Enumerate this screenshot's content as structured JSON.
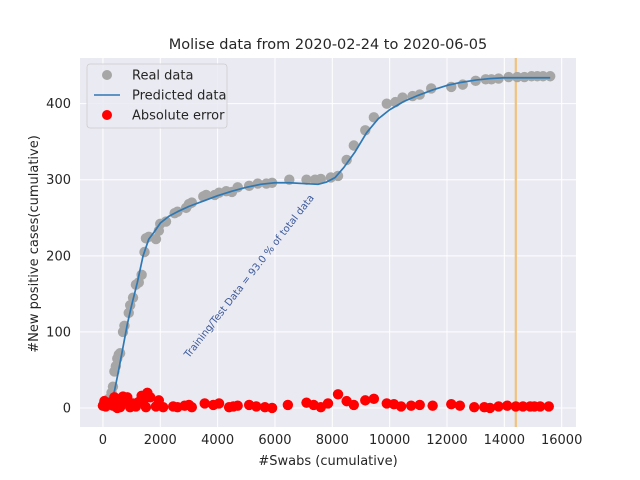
{
  "chart_data": {
    "type": "scatter",
    "title": "Molise data  from 2020-02-24 to 2020-06-05",
    "xlabel": "#Swabs (cumulative)",
    "ylabel": "#New positive cases(cumulative)",
    "xlim": [
      -800,
      16500
    ],
    "ylim": [
      -25,
      460
    ],
    "x_ticks": [
      0,
      2000,
      4000,
      6000,
      8000,
      10000,
      12000,
      14000,
      16000
    ],
    "y_ticks": [
      0,
      100,
      200,
      300,
      400
    ],
    "grid": true,
    "legend_position": "top-left",
    "annotation": {
      "text": "Training/Test Data = 93.0 % of total data",
      "x": 3000,
      "y": 65
    },
    "split_line_x": 14400,
    "colors": {
      "real": "#a6a6a6",
      "predicted": "#2e78b4",
      "error": "#ff0000",
      "split": "#f0c27b",
      "background": "#eaeaf2"
    },
    "series": [
      {
        "name": "Real data",
        "kind": "scatter",
        "points": [
          [
            0,
            3
          ],
          [
            50,
            5
          ],
          [
            100,
            8
          ],
          [
            200,
            12
          ],
          [
            300,
            20
          ],
          [
            350,
            28
          ],
          [
            400,
            48
          ],
          [
            450,
            55
          ],
          [
            500,
            65
          ],
          [
            550,
            70
          ],
          [
            600,
            72
          ],
          [
            700,
            100
          ],
          [
            750,
            108
          ],
          [
            900,
            125
          ],
          [
            950,
            135
          ],
          [
            1050,
            145
          ],
          [
            1150,
            162
          ],
          [
            1250,
            165
          ],
          [
            1350,
            175
          ],
          [
            1450,
            205
          ],
          [
            1500,
            223
          ],
          [
            1600,
            225
          ],
          [
            1850,
            222
          ],
          [
            1950,
            233
          ],
          [
            2000,
            242
          ],
          [
            2200,
            245
          ],
          [
            2500,
            256
          ],
          [
            2600,
            258
          ],
          [
            2900,
            263
          ],
          [
            3000,
            268
          ],
          [
            3100,
            270
          ],
          [
            3500,
            278
          ],
          [
            3600,
            280
          ],
          [
            3900,
            280
          ],
          [
            4050,
            283
          ],
          [
            4300,
            285
          ],
          [
            4500,
            284
          ],
          [
            4700,
            290
          ],
          [
            5100,
            292
          ],
          [
            5400,
            295
          ],
          [
            5700,
            295
          ],
          [
            5900,
            296
          ],
          [
            6500,
            300
          ],
          [
            7100,
            300
          ],
          [
            7400,
            300
          ],
          [
            7600,
            301
          ],
          [
            7950,
            303
          ],
          [
            8200,
            305
          ],
          [
            8500,
            326
          ],
          [
            8750,
            345
          ],
          [
            9150,
            365
          ],
          [
            9450,
            382
          ],
          [
            9900,
            400
          ],
          [
            10200,
            402
          ],
          [
            10450,
            408
          ],
          [
            10800,
            410
          ],
          [
            11050,
            412
          ],
          [
            11450,
            420
          ],
          [
            12150,
            422
          ],
          [
            12550,
            425
          ],
          [
            13000,
            430
          ],
          [
            13350,
            432
          ],
          [
            13550,
            432
          ],
          [
            13800,
            433
          ],
          [
            14150,
            435
          ],
          [
            14450,
            435
          ],
          [
            14700,
            435
          ],
          [
            14950,
            436
          ],
          [
            15150,
            436
          ],
          [
            15350,
            436
          ],
          [
            15600,
            436
          ]
        ]
      },
      {
        "name": "Predicted data",
        "kind": "line",
        "points": [
          [
            0,
            0
          ],
          [
            200,
            5
          ],
          [
            400,
            22
          ],
          [
            550,
            50
          ],
          [
            700,
            80
          ],
          [
            850,
            110
          ],
          [
            1000,
            135
          ],
          [
            1200,
            165
          ],
          [
            1400,
            200
          ],
          [
            1600,
            222
          ],
          [
            1800,
            232
          ],
          [
            2000,
            243
          ],
          [
            2300,
            252
          ],
          [
            2600,
            258
          ],
          [
            3000,
            265
          ],
          [
            3500,
            272
          ],
          [
            4000,
            279
          ],
          [
            4500,
            285
          ],
          [
            5000,
            290
          ],
          [
            5500,
            294
          ],
          [
            6000,
            296
          ],
          [
            6500,
            296
          ],
          [
            7000,
            295
          ],
          [
            7500,
            294
          ],
          [
            7800,
            297
          ],
          [
            8100,
            303
          ],
          [
            8400,
            316
          ],
          [
            8800,
            337
          ],
          [
            9200,
            362
          ],
          [
            9600,
            380
          ],
          [
            10000,
            392
          ],
          [
            10500,
            403
          ],
          [
            11000,
            411
          ],
          [
            11500,
            418
          ],
          [
            12000,
            424
          ],
          [
            12500,
            428
          ],
          [
            13000,
            431
          ],
          [
            13500,
            433
          ],
          [
            14000,
            434
          ],
          [
            14400,
            434
          ],
          [
            15000,
            434
          ],
          [
            15600,
            434
          ]
        ]
      },
      {
        "name": "Absolute error",
        "kind": "scatter",
        "points": [
          [
            0,
            3
          ],
          [
            50,
            9
          ],
          [
            100,
            2
          ],
          [
            200,
            7
          ],
          [
            300,
            5
          ],
          [
            350,
            3
          ],
          [
            400,
            14
          ],
          [
            450,
            2
          ],
          [
            500,
            0
          ],
          [
            550,
            4
          ],
          [
            600,
            1
          ],
          [
            700,
            15
          ],
          [
            750,
            8
          ],
          [
            850,
            14
          ],
          [
            950,
            1
          ],
          [
            1050,
            6
          ],
          [
            1150,
            2
          ],
          [
            1250,
            8
          ],
          [
            1350,
            16
          ],
          [
            1450,
            12
          ],
          [
            1500,
            1
          ],
          [
            1550,
            20
          ],
          [
            1650,
            14
          ],
          [
            1850,
            2
          ],
          [
            1950,
            10
          ],
          [
            2100,
            1
          ],
          [
            2450,
            2
          ],
          [
            2600,
            1
          ],
          [
            2850,
            3
          ],
          [
            3000,
            4
          ],
          [
            3100,
            1
          ],
          [
            3550,
            6
          ],
          [
            3850,
            4
          ],
          [
            4050,
            6
          ],
          [
            4400,
            1
          ],
          [
            4550,
            2
          ],
          [
            4700,
            3
          ],
          [
            5100,
            4
          ],
          [
            5350,
            2
          ],
          [
            5650,
            1
          ],
          [
            5900,
            0
          ],
          [
            6450,
            4
          ],
          [
            7100,
            7
          ],
          [
            7350,
            4
          ],
          [
            7600,
            1
          ],
          [
            7850,
            6
          ],
          [
            8200,
            18
          ],
          [
            8500,
            9
          ],
          [
            8750,
            4
          ],
          [
            9150,
            10
          ],
          [
            9450,
            12
          ],
          [
            9900,
            6
          ],
          [
            10150,
            5
          ],
          [
            10400,
            2
          ],
          [
            10750,
            3
          ],
          [
            11050,
            4
          ],
          [
            11500,
            3
          ],
          [
            12150,
            5
          ],
          [
            12450,
            3
          ],
          [
            12950,
            1
          ],
          [
            13300,
            1
          ],
          [
            13500,
            0
          ],
          [
            13800,
            2
          ],
          [
            14100,
            3
          ],
          [
            14400,
            2
          ],
          [
            14650,
            2
          ],
          [
            14900,
            2
          ],
          [
            15050,
            2
          ],
          [
            15250,
            2
          ],
          [
            15550,
            2
          ]
        ]
      }
    ]
  }
}
